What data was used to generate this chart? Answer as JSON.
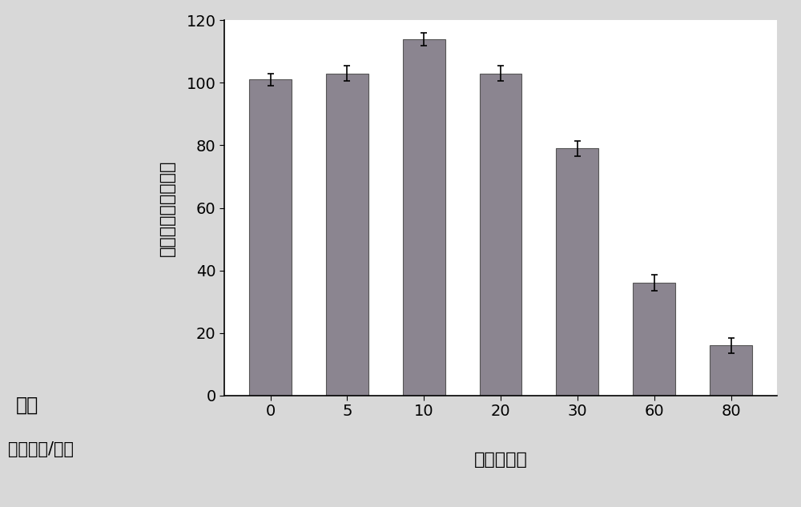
{
  "categories": [
    "0",
    "5",
    "10",
    "20",
    "30",
    "60",
    "80"
  ],
  "values": [
    101,
    103,
    114,
    103,
    79,
    36,
    16
  ],
  "errors": [
    2.0,
    2.5,
    2.0,
    2.5,
    2.5,
    2.5,
    2.5
  ],
  "bar_color": "#8B8590",
  "bar_edge_color": "#555555",
  "ylabel": "细胞活力（百分比）",
  "xlabel_main": "淡巴母细胞",
  "xlabel_left_line1": "乳酸",
  "xlabel_left_line2": "（毫摩尔/升）",
  "ylim": [
    0,
    120
  ],
  "yticks": [
    0,
    20,
    40,
    60,
    80,
    100,
    120
  ],
  "background_color": "#d8d8d8",
  "plot_bg_color": "#ffffff",
  "bar_width": 0.55,
  "figsize": [
    10.0,
    6.33
  ],
  "dpi": 100
}
